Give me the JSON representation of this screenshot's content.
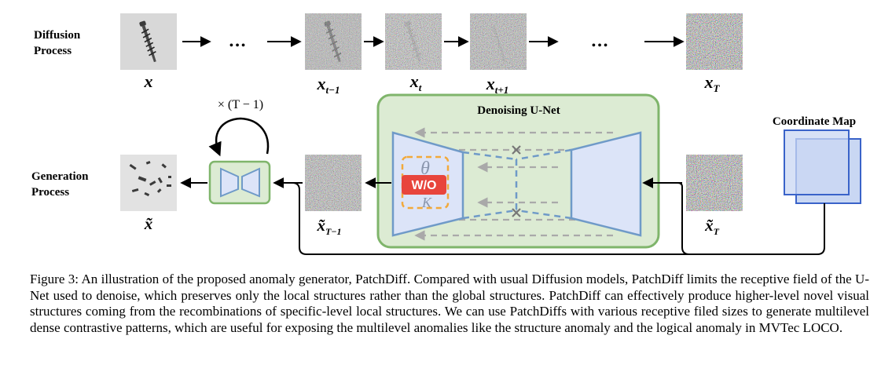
{
  "diffusion": {
    "label_line1": "Diffusion",
    "label_line2": "Process",
    "ellipsis_1": "•••",
    "ellipsis_2": "•••",
    "x0": {
      "base": "x",
      "sub": ""
    },
    "xt_minus": {
      "base": "x",
      "sub": "t−1"
    },
    "xt": {
      "base": "x",
      "sub": "t"
    },
    "xt_plus": {
      "base": "x",
      "sub": "t+1"
    },
    "xT": {
      "base": "x",
      "sub": "T"
    }
  },
  "generation": {
    "label_line1": "Generation",
    "label_line2": "Process",
    "loop_label": "× (T − 1)",
    "x_tilde": {
      "base": "x̃",
      "sub": ""
    },
    "x_tilde_T_minus": {
      "base": "x̃",
      "sub": "T−1"
    },
    "x_tilde_T": {
      "base": "x̃",
      "sub": "T"
    }
  },
  "unet": {
    "title": "Denoising U-Net",
    "wo_badge": "W/O",
    "theta_symbol": "θ",
    "kappa_symbol": "K"
  },
  "coordinate_map": {
    "label": "Coordinate Map"
  },
  "colors": {
    "unet_fill": "#dcebd3",
    "unet_stroke": "#7fb56b",
    "trapezoid_fill": "#dce4f8",
    "trapezoid_stroke": "#6f9ac8",
    "coord_fill": "#c9d7f3",
    "coord_stroke": "#3a63c9",
    "badge_red": "#e8453c",
    "badge_border": "#f2a93b"
  },
  "caption": "Figure 3: An illustration of the proposed anomaly generator, PatchDiff. Compared with usual Diffusion models, PatchDiff limits the receptive field of the U-Net used to denoise, which preserves only the local structures rather than the global structures. PatchDiff can effectively produce higher-level novel visual structures coming from the recombinations of specific-level local structures. We can use PatchDiffs with various receptive filed sizes to generate multilevel dense contrastive patterns, which are useful for exposing the multilevel anomalies like the structure anomaly and the logical anomaly in MVTec LOCO."
}
